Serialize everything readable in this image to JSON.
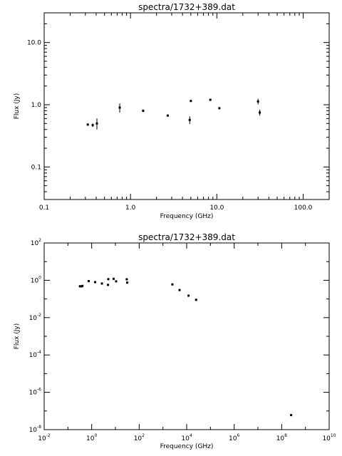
{
  "chart_data": [
    {
      "type": "scatter",
      "title": "spectra/1732+389.dat",
      "xlabel": "Frequency (GHz)",
      "ylabel": "Flux (Jy)",
      "xscale": "log",
      "yscale": "log",
      "xlim": [
        0.1,
        200
      ],
      "ylim": [
        0.03,
        30
      ],
      "grid": false,
      "xtick_labels": [
        {
          "v": 0.1,
          "t": "0.1"
        },
        {
          "v": 1,
          "t": "1.0"
        },
        {
          "v": 10,
          "t": "10.0"
        },
        {
          "v": 100,
          "t": "100.0"
        }
      ],
      "ytick_labels": [
        {
          "v": 0.1,
          "t": "0.1"
        },
        {
          "v": 1,
          "t": "1.0"
        },
        {
          "v": 10,
          "t": "10.0"
        }
      ],
      "points": [
        {
          "x": 0.32,
          "y": 0.48,
          "err": 0.02
        },
        {
          "x": 0.365,
          "y": 0.47,
          "err": 0.03
        },
        {
          "x": 0.408,
          "y": 0.5,
          "err": 0.1
        },
        {
          "x": 0.75,
          "y": 0.9,
          "err": 0.15
        },
        {
          "x": 1.4,
          "y": 0.8,
          "err": 0.04
        },
        {
          "x": 2.7,
          "y": 0.67,
          "err": 0.02
        },
        {
          "x": 4.85,
          "y": 0.57,
          "err": 0.08
        },
        {
          "x": 5.0,
          "y": 1.15,
          "err": 0.03
        },
        {
          "x": 8.4,
          "y": 1.2,
          "err": 0.03
        },
        {
          "x": 10.7,
          "y": 0.88,
          "err": 0.03
        },
        {
          "x": 30.0,
          "y": 1.13,
          "err": 0.12
        },
        {
          "x": 31.4,
          "y": 0.75,
          "err": 0.08
        }
      ]
    },
    {
      "type": "scatter",
      "title": "spectra/1732+389.dat",
      "xlabel": "Frequency (GHz)",
      "ylabel": "Flux (Jy)",
      "xscale": "log",
      "yscale": "log",
      "xlim": [
        0.01,
        10000000000.0
      ],
      "ylim": [
        1e-08,
        100
      ],
      "grid": false,
      "xtick_labels": [
        {
          "v": 0.01,
          "b": "10",
          "e": "-2"
        },
        {
          "v": 1,
          "b": "10",
          "e": "0"
        },
        {
          "v": 100,
          "b": "10",
          "e": "2"
        },
        {
          "v": 10000,
          "b": "10",
          "e": "4"
        },
        {
          "v": 1000000,
          "b": "10",
          "e": "6"
        },
        {
          "v": 100000000,
          "b": "10",
          "e": "8"
        },
        {
          "v": 10000000000,
          "b": "10",
          "e": "10"
        }
      ],
      "ytick_labels": [
        {
          "v": 1e-08,
          "b": "10",
          "e": "-8"
        },
        {
          "v": 1e-06,
          "b": "10",
          "e": "-6"
        },
        {
          "v": 0.0001,
          "b": "10",
          "e": "-4"
        },
        {
          "v": 0.01,
          "b": "10",
          "e": "-2"
        },
        {
          "v": 1,
          "b": "10",
          "e": "0"
        },
        {
          "v": 100,
          "b": "10",
          "e": "2"
        }
      ],
      "points": [
        {
          "x": 0.32,
          "y": 0.48
        },
        {
          "x": 0.365,
          "y": 0.47
        },
        {
          "x": 0.408,
          "y": 0.5
        },
        {
          "x": 0.75,
          "y": 0.9
        },
        {
          "x": 1.4,
          "y": 0.8
        },
        {
          "x": 2.7,
          "y": 0.67
        },
        {
          "x": 4.85,
          "y": 0.57
        },
        {
          "x": 5.0,
          "y": 1.15
        },
        {
          "x": 8.4,
          "y": 1.2
        },
        {
          "x": 10.7,
          "y": 0.88
        },
        {
          "x": 30.0,
          "y": 1.13
        },
        {
          "x": 31.4,
          "y": 0.75
        },
        {
          "x": 2500,
          "y": 0.6
        },
        {
          "x": 5000,
          "y": 0.3
        },
        {
          "x": 12000,
          "y": 0.15
        },
        {
          "x": 25000,
          "y": 0.09
        },
        {
          "x": 250000000,
          "y": 6e-08
        }
      ]
    }
  ]
}
